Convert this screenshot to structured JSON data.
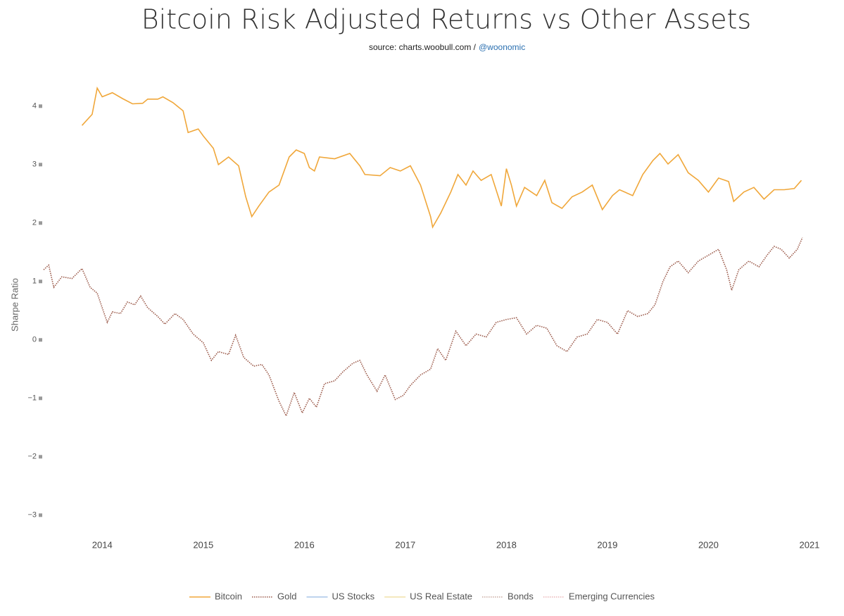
{
  "chart_data": {
    "type": "line",
    "title": "Bitcoin Risk Adjusted Returns vs Other Assets",
    "subtitle": "source: charts.woobull.com /",
    "subtitle_link": "@woonomic",
    "y_label": "Sharpe Ratio",
    "xlim": [
      2013.42,
      2021.07
    ],
    "xticks": [
      2014,
      2015,
      2016,
      2017,
      2018,
      2019,
      2020,
      2021
    ],
    "ylim": [
      -3.4,
      4.6
    ],
    "yticks": [
      {
        "value": -3,
        "label": "−3"
      },
      {
        "value": -2,
        "label": "−2"
      },
      {
        "value": -1,
        "label": "−1"
      },
      0,
      1,
      2,
      3,
      4
    ],
    "grid": false,
    "legend": "bottom",
    "series": [
      {
        "name": "Bitcoin",
        "color": "#f0a73a",
        "dash": "solid",
        "x": [
          2013.8,
          2013.9,
          2013.95,
          2014.0,
          2014.1,
          2014.2,
          2014.3,
          2014.4,
          2014.45,
          2014.55,
          2014.6,
          2014.7,
          2014.8,
          2014.85,
          2014.95,
          2015.0,
          2015.1,
          2015.15,
          2015.25,
          2015.35,
          2015.42,
          2015.48,
          2015.55,
          2015.65,
          2015.75,
          2015.85,
          2015.92,
          2016.0,
          2016.05,
          2016.1,
          2016.15,
          2016.3,
          2016.45,
          2016.55,
          2016.6,
          2016.75,
          2016.85,
          2016.95,
          2017.05,
          2017.15,
          2017.25,
          2017.27,
          2017.35,
          2017.45,
          2017.52,
          2017.6,
          2017.67,
          2017.75,
          2017.85,
          2017.95,
          2018.0,
          2018.05,
          2018.1,
          2018.18,
          2018.3,
          2018.38,
          2018.45,
          2018.55,
          2018.65,
          2018.75,
          2018.85,
          2018.95,
          2019.05,
          2019.12,
          2019.25,
          2019.35,
          2019.45,
          2019.52,
          2019.6,
          2019.7,
          2019.8,
          2019.9,
          2020.0,
          2020.1,
          2020.2,
          2020.25,
          2020.35,
          2020.45,
          2020.55,
          2020.65,
          2020.75,
          2020.85,
          2020.92
        ],
        "values": [
          3.67,
          3.86,
          4.31,
          4.16,
          4.23,
          4.13,
          4.04,
          4.05,
          4.12,
          4.12,
          4.16,
          4.06,
          3.92,
          3.55,
          3.61,
          3.49,
          3.28,
          3.0,
          3.13,
          2.98,
          2.45,
          2.11,
          2.29,
          2.53,
          2.65,
          3.13,
          3.25,
          3.19,
          2.95,
          2.89,
          3.13,
          3.1,
          3.19,
          2.98,
          2.83,
          2.81,
          2.95,
          2.89,
          2.98,
          2.65,
          2.11,
          1.93,
          2.17,
          2.53,
          2.83,
          2.65,
          2.89,
          2.73,
          2.83,
          2.29,
          2.93,
          2.65,
          2.29,
          2.61,
          2.47,
          2.73,
          2.35,
          2.25,
          2.45,
          2.53,
          2.65,
          2.23,
          2.47,
          2.57,
          2.47,
          2.83,
          3.07,
          3.19,
          3.01,
          3.17,
          2.86,
          2.73,
          2.53,
          2.77,
          2.71,
          2.37,
          2.53,
          2.61,
          2.41,
          2.57,
          2.57,
          2.59,
          2.73
        ]
      },
      {
        "name": "Gold",
        "color": "#9a5848",
        "dash": "dot",
        "x": [
          2013.42,
          2013.47,
          2013.52,
          2013.6,
          2013.7,
          2013.8,
          2013.88,
          2013.95,
          2014.0,
          2014.05,
          2014.1,
          2014.18,
          2014.25,
          2014.32,
          2014.38,
          2014.45,
          2014.55,
          2014.62,
          2014.72,
          2014.8,
          2014.9,
          2015.0,
          2015.08,
          2015.15,
          2015.25,
          2015.32,
          2015.4,
          2015.5,
          2015.58,
          2015.65,
          2015.75,
          2015.82,
          2015.9,
          2015.98,
          2016.05,
          2016.12,
          2016.2,
          2016.3,
          2016.38,
          2016.48,
          2016.55,
          2016.62,
          2016.72,
          2016.8,
          2016.9,
          2016.98,
          2017.05,
          2017.15,
          2017.25,
          2017.32,
          2017.4,
          2017.5,
          2017.6,
          2017.7,
          2017.8,
          2017.9,
          2018.0,
          2018.1,
          2018.2,
          2018.3,
          2018.4,
          2018.5,
          2018.6,
          2018.7,
          2018.8,
          2018.9,
          2019.0,
          2019.1,
          2019.2,
          2019.3,
          2019.4,
          2019.47,
          2019.55,
          2019.62,
          2019.7,
          2019.8,
          2019.9,
          2020.0,
          2020.1,
          2020.18,
          2020.23,
          2020.3,
          2020.4,
          2020.5,
          2020.58,
          2020.65,
          2020.72,
          2020.8,
          2020.88,
          2020.93
        ],
        "values": [
          1.2,
          1.28,
          0.9,
          1.08,
          1.05,
          1.22,
          0.9,
          0.8,
          0.55,
          0.3,
          0.48,
          0.45,
          0.65,
          0.6,
          0.75,
          0.55,
          0.4,
          0.27,
          0.45,
          0.35,
          0.1,
          -0.05,
          -0.35,
          -0.2,
          -0.25,
          0.08,
          -0.3,
          -0.45,
          -0.42,
          -0.6,
          -1.05,
          -1.3,
          -0.9,
          -1.25,
          -1.0,
          -1.15,
          -0.75,
          -0.7,
          -0.55,
          -0.4,
          -0.35,
          -0.6,
          -0.88,
          -0.6,
          -1.02,
          -0.95,
          -0.78,
          -0.6,
          -0.5,
          -0.15,
          -0.35,
          0.15,
          -0.1,
          0.1,
          0.05,
          0.3,
          0.35,
          0.38,
          0.1,
          0.25,
          0.2,
          -0.1,
          -0.2,
          0.05,
          0.1,
          0.35,
          0.3,
          0.1,
          0.5,
          0.4,
          0.45,
          0.6,
          1.0,
          1.25,
          1.35,
          1.15,
          1.35,
          1.45,
          1.55,
          1.2,
          0.85,
          1.2,
          1.35,
          1.25,
          1.45,
          1.6,
          1.55,
          1.4,
          1.55,
          1.75
        ]
      },
      {
        "name": "US Stocks",
        "color": "#a9c6e8",
        "dash": "solid",
        "x": [],
        "values": []
      },
      {
        "name": "US Real Estate",
        "color": "#f1e0a8",
        "dash": "solid",
        "x": [],
        "values": []
      },
      {
        "name": "Bonds",
        "color": "#c9a79e",
        "dash": "dot",
        "x": [],
        "values": []
      },
      {
        "name": "Emerging Currencies",
        "color": "#eab3b6",
        "dash": "dot",
        "x": [],
        "values": []
      }
    ]
  }
}
